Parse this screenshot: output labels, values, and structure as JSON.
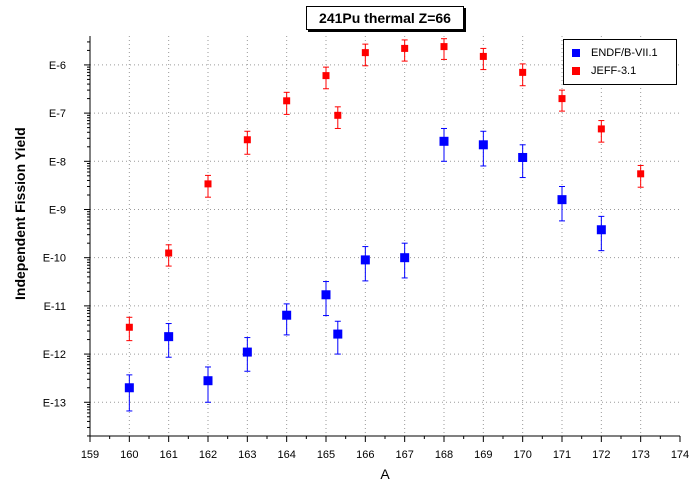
{
  "chart_data": {
    "type": "scatter",
    "title": "241Pu thermal Z=66",
    "xlabel": "A",
    "ylabel": "Independent Fission Yield",
    "xlim": [
      159,
      174
    ],
    "x_ticks": [
      "159",
      "160",
      "161",
      "162",
      "163",
      "164",
      "165",
      "166",
      "167",
      "168",
      "169",
      "170",
      "171",
      "172",
      "173",
      "174"
    ],
    "ylim_log10": [
      -13.7,
      -5.4
    ],
    "y_scale": "log",
    "y_ticks": [
      {
        "label": "E-6",
        "exp": -6
      },
      {
        "label": "E-7",
        "exp": -7
      },
      {
        "label": "E-8",
        "exp": -8
      },
      {
        "label": "E-9",
        "exp": -9
      },
      {
        "label": "E-10",
        "exp": -10
      },
      {
        "label": "E-11",
        "exp": -11
      },
      {
        "label": "E-12",
        "exp": -12
      },
      {
        "label": "E-13",
        "exp": -13
      }
    ],
    "grid": true,
    "legend_position": "top-right",
    "series": [
      {
        "name": "ENDF/B-VII.1",
        "color": "#0000ff",
        "marker": "square-large",
        "points": [
          {
            "x": 160,
            "y": 2e-13,
            "ylo": 6.6e-14,
            "yhi": 3.7e-13
          },
          {
            "x": 161,
            "y": 2.3e-12,
            "ylo": 8.6e-13,
            "yhi": 4.3e-12
          },
          {
            "x": 162,
            "y": 2.8e-13,
            "ylo": 1e-13,
            "yhi": 5.4e-13
          },
          {
            "x": 163,
            "y": 1.1e-12,
            "ylo": 4.4e-13,
            "yhi": 2.2e-12
          },
          {
            "x": 164,
            "y": 6.4e-12,
            "ylo": 2.5e-12,
            "yhi": 1.1e-11
          },
          {
            "x": 165,
            "y": 1.7e-11,
            "ylo": 6.3e-12,
            "yhi": 3.2e-11
          },
          {
            "x": 165.3,
            "y": 2.6e-12,
            "ylo": 1e-12,
            "yhi": 4.8e-12
          },
          {
            "x": 166,
            "y": 9e-11,
            "ylo": 3.3e-11,
            "yhi": 1.7e-10
          },
          {
            "x": 167,
            "y": 1e-10,
            "ylo": 3.8e-11,
            "yhi": 2e-10
          },
          {
            "x": 168,
            "y": 2.6e-08,
            "ylo": 1e-08,
            "yhi": 4.8e-08
          },
          {
            "x": 169,
            "y": 2.2e-08,
            "ylo": 8e-09,
            "yhi": 4.2e-08
          },
          {
            "x": 170,
            "y": 1.2e-08,
            "ylo": 4.6e-09,
            "yhi": 2.2e-08
          },
          {
            "x": 171,
            "y": 1.6e-09,
            "ylo": 5.8e-10,
            "yhi": 3e-09
          },
          {
            "x": 172,
            "y": 3.8e-10,
            "ylo": 1.4e-10,
            "yhi": 7.2e-10
          }
        ]
      },
      {
        "name": "JEFF-3.1",
        "color": "#ff0000",
        "marker": "square-small",
        "points": [
          {
            "x": 160,
            "y": 3.6e-12,
            "ylo": 1.9e-12,
            "yhi": 5.8e-12
          },
          {
            "x": 161,
            "y": 1.25e-10,
            "ylo": 6.7e-11,
            "yhi": 1.85e-10
          },
          {
            "x": 162,
            "y": 3.4e-09,
            "ylo": 1.8e-09,
            "yhi": 5.1e-09
          },
          {
            "x": 163,
            "y": 2.8e-08,
            "ylo": 1.4e-08,
            "yhi": 4.2e-08
          },
          {
            "x": 164,
            "y": 1.8e-07,
            "ylo": 9.4e-08,
            "yhi": 2.7e-07
          },
          {
            "x": 165,
            "y": 6e-07,
            "ylo": 3.2e-07,
            "yhi": 9e-07
          },
          {
            "x": 165.3,
            "y": 9e-08,
            "ylo": 4.8e-08,
            "yhi": 1.35e-07
          },
          {
            "x": 166,
            "y": 1.8e-06,
            "ylo": 9.6e-07,
            "yhi": 2.7e-06
          },
          {
            "x": 167,
            "y": 2.2e-06,
            "ylo": 1.2e-06,
            "yhi": 3.3e-06
          },
          {
            "x": 168,
            "y": 2.4e-06,
            "ylo": 1.3e-06,
            "yhi": 3.5e-06
          },
          {
            "x": 169,
            "y": 1.5e-06,
            "ylo": 8e-07,
            "yhi": 2.2e-06
          },
          {
            "x": 170,
            "y": 7e-07,
            "ylo": 3.7e-07,
            "yhi": 1.05e-06
          },
          {
            "x": 171,
            "y": 2e-07,
            "ylo": 1.1e-07,
            "yhi": 3e-07
          },
          {
            "x": 172,
            "y": 4.7e-08,
            "ylo": 2.5e-08,
            "yhi": 7e-08
          },
          {
            "x": 173,
            "y": 5.5e-09,
            "ylo": 2.9e-09,
            "yhi": 8.2e-09
          }
        ]
      }
    ]
  }
}
